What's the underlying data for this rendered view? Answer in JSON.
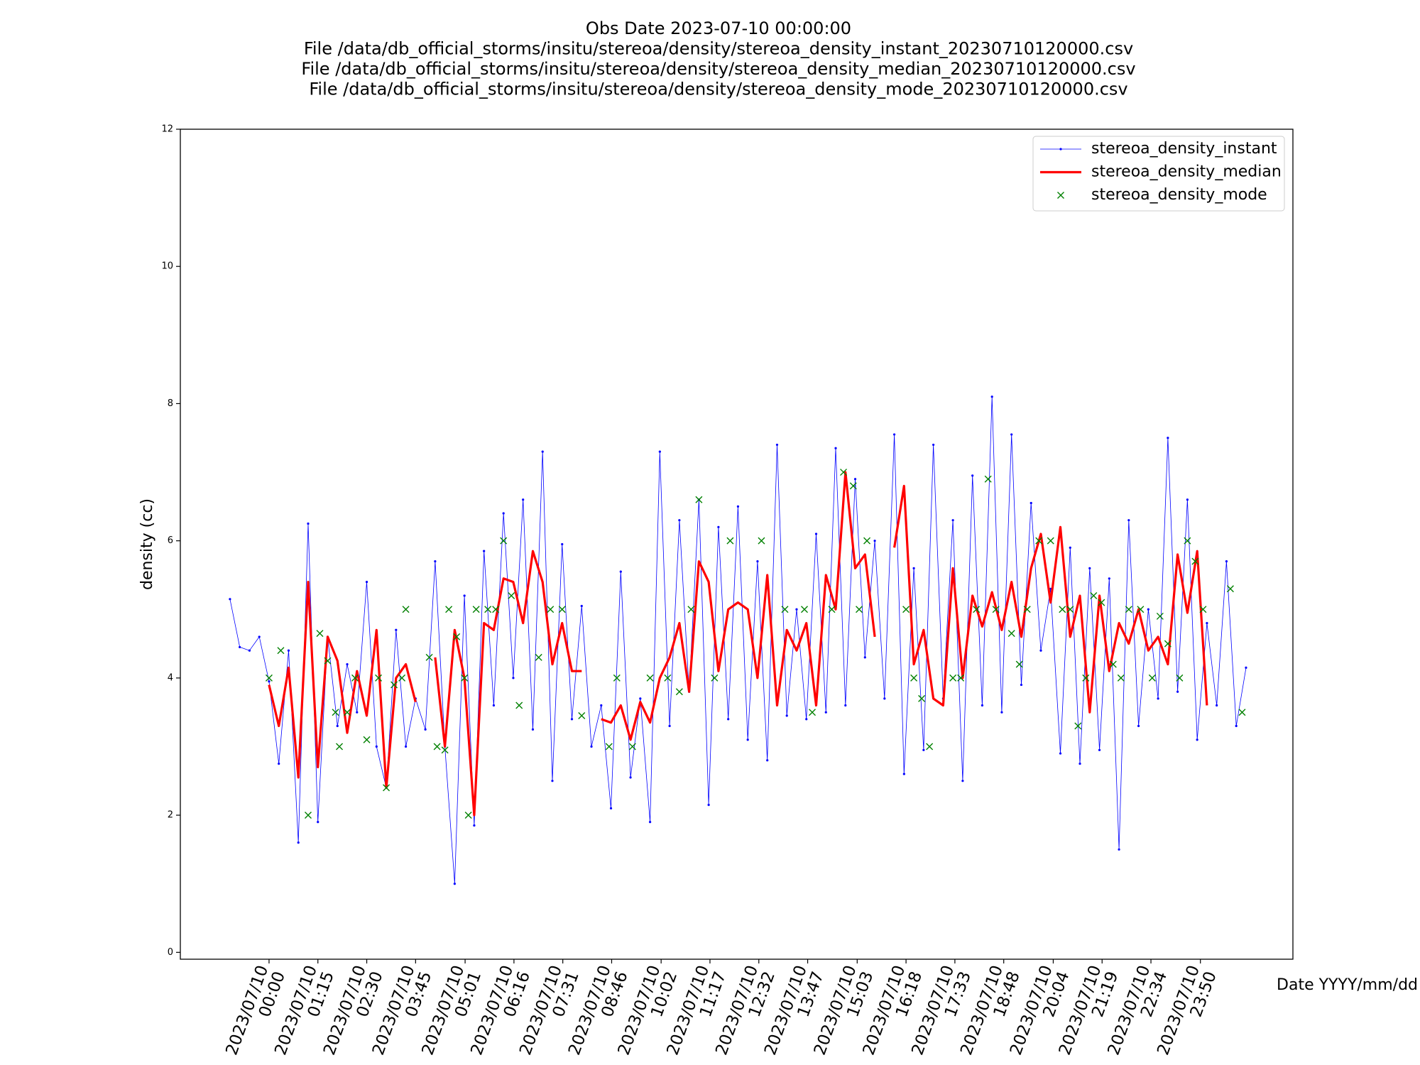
{
  "chart_data": {
    "type": "line",
    "title": [
      "Obs Date 2023-07-10 00:00:00",
      "File /data/db_official_storms/insitu/stereoa/density/stereoa_density_instant_20230710120000.csv",
      "File /data/db_official_storms/insitu/stereoa/density/stereoa_density_median_20230710120000.csv",
      "File /data/db_official_storms/insitu/stereoa/density/stereoa_density_mode_20230710120000.csv"
    ],
    "x_label": "Date YYYY/mm/dd",
    "y_label": "density (cc)",
    "xlim": [
      -2.27,
      26.2
    ],
    "ylim": [
      -0.1,
      12
    ],
    "yticks": [
      0,
      2,
      4,
      6,
      8,
      10,
      12
    ],
    "xticks": [
      {
        "value": 0,
        "label": "2023/07/10\n00:00"
      },
      {
        "value": 1.25,
        "label": "2023/07/10\n01:15"
      },
      {
        "value": 2.5,
        "label": "2023/07/10\n02:30"
      },
      {
        "value": 3.75,
        "label": "2023/07/10\n03:45"
      },
      {
        "value": 5.017,
        "label": "2023/07/10\n05:01"
      },
      {
        "value": 6.267,
        "label": "2023/07/10\n06:16"
      },
      {
        "value": 7.517,
        "label": "2023/07/10\n07:31"
      },
      {
        "value": 8.767,
        "label": "2023/07/10\n08:46"
      },
      {
        "value": 10.033,
        "label": "2023/07/10\n10:02"
      },
      {
        "value": 11.283,
        "label": "2023/07/10\n11:17"
      },
      {
        "value": 12.533,
        "label": "2023/07/10\n12:32"
      },
      {
        "value": 13.783,
        "label": "2023/07/10\n13:47"
      },
      {
        "value": 15.05,
        "label": "2023/07/10\n15:03"
      },
      {
        "value": 16.3,
        "label": "2023/07/10\n16:18"
      },
      {
        "value": 17.55,
        "label": "2023/07/10\n17:33"
      },
      {
        "value": 18.8,
        "label": "2023/07/10\n18:48"
      },
      {
        "value": 20.067,
        "label": "2023/07/10\n20:04"
      },
      {
        "value": 21.317,
        "label": "2023/07/10\n21:19"
      },
      {
        "value": 22.567,
        "label": "2023/07/10\n22:34"
      },
      {
        "value": 23.833,
        "label": "2023/07/10\n23:50"
      }
    ],
    "legend": "upper right",
    "grid": false,
    "series": [
      {
        "name": "stereoa_density_instant",
        "color": "#0000ff",
        "style": "line-dots",
        "x": [
          -1,
          -0.75,
          -0.5,
          -0.25,
          0,
          0.25,
          0.5,
          0.75,
          1,
          1.25,
          1.5,
          1.75,
          2,
          2.25,
          2.5,
          2.75,
          3,
          3.25,
          3.5,
          3.75,
          4,
          4.25,
          4.5,
          4.75,
          5,
          5.25,
          5.5,
          5.75,
          6,
          6.25,
          6.5,
          6.75,
          7,
          7.25,
          7.5,
          7.75,
          8,
          8.25,
          8.5,
          8.75,
          9,
          9.25,
          9.5,
          9.75,
          10,
          10.25,
          10.5,
          10.75,
          11,
          11.25,
          11.5,
          11.75,
          12,
          12.25,
          12.5,
          12.75,
          13,
          13.25,
          13.5,
          13.75,
          14,
          14.25,
          14.5,
          14.75,
          15,
          15.25,
          15.5,
          15.75,
          16,
          16.25,
          16.5,
          16.75,
          17,
          17.25,
          17.5,
          17.75,
          18,
          18.25,
          18.5,
          18.75,
          19,
          19.25,
          19.5,
          19.75,
          20,
          20.25,
          20.5,
          20.75,
          21,
          21.25,
          21.5,
          21.75,
          22,
          22.25,
          22.5,
          22.75,
          23,
          23.25,
          23.5,
          23.75,
          24,
          24.25,
          24.5,
          24.75,
          25
        ],
        "values": [
          5.15,
          4.45,
          4.4,
          4.6,
          3.95,
          2.75,
          4.4,
          1.6,
          6.25,
          1.9,
          4.6,
          3.3,
          4.2,
          3.5,
          5.4,
          3.0,
          2.4,
          4.7,
          3.0,
          3.7,
          3.25,
          5.7,
          3.0,
          1.0,
          5.2,
          1.85,
          5.85,
          3.6,
          6.4,
          4.0,
          6.6,
          3.25,
          7.3,
          2.5,
          5.95,
          3.4,
          5.05,
          3.0,
          3.6,
          2.1,
          5.55,
          2.55,
          3.7,
          1.9,
          7.3,
          3.3,
          6.3,
          3.8,
          6.6,
          2.15,
          6.2,
          3.4,
          6.5,
          3.1,
          5.7,
          2.8,
          7.4,
          3.45,
          5.0,
          3.4,
          6.1,
          3.5,
          7.35,
          3.6,
          6.9,
          4.3,
          6.0,
          3.7,
          7.55,
          2.6,
          5.6,
          2.95,
          7.4,
          3.7,
          6.3,
          2.5,
          6.95,
          3.6,
          8.1,
          3.5,
          7.55,
          3.9,
          6.55,
          4.4,
          5.3,
          2.9,
          5.9,
          2.75,
          5.6,
          2.95,
          5.45,
          1.5,
          6.3,
          3.3,
          5.0,
          3.7,
          7.5,
          3.8,
          6.6,
          3.1,
          4.8,
          3.6,
          5.7,
          3.3,
          4.15
        ]
      },
      {
        "name": "stereoa_density_median",
        "color": "#ff0000",
        "style": "line",
        "x": [
          0,
          0.25,
          0.5,
          0.75,
          1,
          1.25,
          1.5,
          1.75,
          2,
          2.25,
          2.5,
          2.75,
          3,
          3.25,
          3.5,
          3.75,
          4,
          4.25,
          4.5,
          4.75,
          5,
          5.25,
          5.5,
          5.75,
          6,
          6.25,
          6.5,
          6.75,
          7,
          7.25,
          7.5,
          7.75,
          8,
          8.25,
          8.5,
          8.75,
          9,
          9.25,
          9.5,
          9.75,
          10,
          10.25,
          10.5,
          10.75,
          11,
          11.25,
          11.5,
          11.75,
          12,
          12.25,
          12.5,
          12.75,
          13,
          13.25,
          13.5,
          13.75,
          14,
          14.25,
          14.5,
          14.75,
          15,
          15.25,
          15.5,
          15.75,
          16,
          16.25,
          16.5,
          16.75,
          17,
          17.25,
          17.5,
          17.75,
          18,
          18.25,
          18.5,
          18.75,
          19,
          19.25,
          19.5,
          19.75,
          20,
          20.25,
          20.5,
          20.75,
          21,
          21.25,
          21.5,
          21.75,
          22,
          22.25,
          22.5,
          22.75,
          23,
          23.25,
          23.5,
          23.75,
          24
        ],
        "values": [
          3.9,
          3.3,
          4.15,
          2.55,
          5.4,
          2.7,
          4.6,
          4.25,
          3.2,
          4.1,
          3.45,
          4.7,
          2.4,
          4.0,
          4.2,
          3.65,
          null,
          4.3,
          3.0,
          4.7,
          4.0,
          2.0,
          4.8,
          4.7,
          5.45,
          5.4,
          4.8,
          5.85,
          5.4,
          4.2,
          4.8,
          4.1,
          4.1,
          null,
          3.4,
          3.35,
          3.6,
          3.1,
          3.65,
          3.35,
          4.0,
          4.3,
          4.8,
          3.8,
          5.7,
          5.4,
          4.1,
          5.0,
          5.1,
          5.0,
          4.0,
          5.5,
          3.6,
          4.7,
          4.4,
          4.8,
          3.6,
          5.5,
          5.0,
          7.0,
          5.6,
          5.8,
          4.6,
          null,
          5.9,
          6.8,
          4.2,
          4.7,
          3.7,
          3.6,
          5.6,
          4.0,
          5.2,
          4.75,
          5.25,
          4.7,
          5.4,
          4.6,
          5.6,
          6.1,
          5.1,
          6.2,
          4.6,
          5.2,
          3.5,
          5.2,
          4.1,
          4.8,
          4.5,
          5.0,
          4.4,
          4.6,
          4.2,
          5.8,
          4.95,
          5.85,
          3.6
        ]
      },
      {
        "name": "stereoa_density_mode",
        "color": "#008000",
        "style": "x-marker",
        "x": [
          0,
          0.3,
          1.0,
          1.3,
          1.5,
          1.7,
          1.8,
          2.0,
          2.2,
          2.5,
          2.8,
          3.0,
          3.2,
          3.4,
          3.5,
          4.1,
          4.3,
          4.5,
          4.6,
          4.8,
          5.0,
          5.1,
          5.3,
          5.6,
          5.8,
          6.0,
          6.2,
          6.4,
          6.9,
          7.2,
          7.5,
          8.0,
          8.7,
          8.9,
          9.3,
          9.75,
          10.2,
          10.5,
          10.8,
          11.0,
          11.4,
          11.8,
          12.6,
          13.2,
          13.7,
          13.9,
          14.4,
          14.7,
          14.95,
          15.1,
          15.3,
          16.3,
          16.5,
          16.7,
          16.9,
          17.5,
          17.7,
          18.1,
          18.4,
          18.6,
          19.0,
          19.2,
          19.4,
          19.7,
          20.0,
          20.3,
          20.5,
          20.7,
          20.9,
          21.1,
          21.3,
          21.6,
          21.8,
          22.0,
          22.3,
          22.6,
          22.8,
          23.0,
          23.3,
          23.5,
          23.7,
          23.9,
          24.6,
          24.9
        ],
        "values": [
          4,
          4.4,
          2,
          4.65,
          4.25,
          3.5,
          3.0,
          3.5,
          4.0,
          3.1,
          4.0,
          2.4,
          3.9,
          4.0,
          5.0,
          4.3,
          3.0,
          2.95,
          5.0,
          4.6,
          4.0,
          2.0,
          5.0,
          5.0,
          5.0,
          6.0,
          5.2,
          3.6,
          4.3,
          5.0,
          5.0,
          3.45,
          3.0,
          4.0,
          3.0,
          4.0,
          4.0,
          3.8,
          5.0,
          6.6,
          4.0,
          6.0,
          6.0,
          5.0,
          5.0,
          3.5,
          5.0,
          7.0,
          6.8,
          5.0,
          6.0,
          5.0,
          4.0,
          3.7,
          3.0,
          4.0,
          4.0,
          5.0,
          6.9,
          5.0,
          4.65,
          4.2,
          5.0,
          6.0,
          6.0,
          5.0,
          5.0,
          3.3,
          4.0,
          5.2,
          5.1,
          4.2,
          4.0,
          5.0,
          5.0,
          4.0,
          4.9,
          4.5,
          4.0,
          6.0,
          5.7,
          5.0,
          5.3,
          3.5
        ]
      }
    ]
  }
}
